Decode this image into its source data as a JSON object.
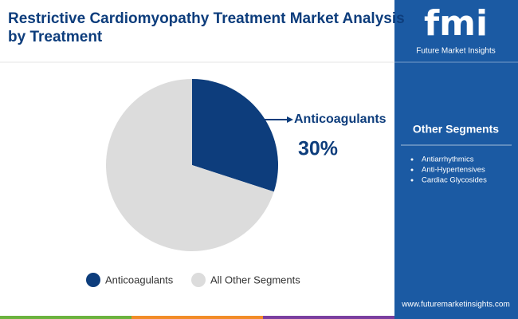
{
  "chart_data": {
    "type": "pie",
    "title": "Restrictive Cardiomyopathy Treatment Market Analysis by Treatment",
    "categories": [
      "Anticoagulants",
      "All Other Segments"
    ],
    "values": [
      30,
      70
    ],
    "value_labels": [
      "30%",
      null
    ],
    "colors": [
      "#0d3d7c",
      "#dcdcdc"
    ],
    "legend": "bottom"
  },
  "brand": {
    "logo": "fmi",
    "name": "Future Market Insights"
  },
  "panel": {
    "title": "Other Segments",
    "items": [
      "Antiarrhythmics",
      "Anti-Hypertensives",
      "Cardiac Glycosides"
    ]
  },
  "footer": {
    "url": "www.futuremarketinsights.com"
  }
}
